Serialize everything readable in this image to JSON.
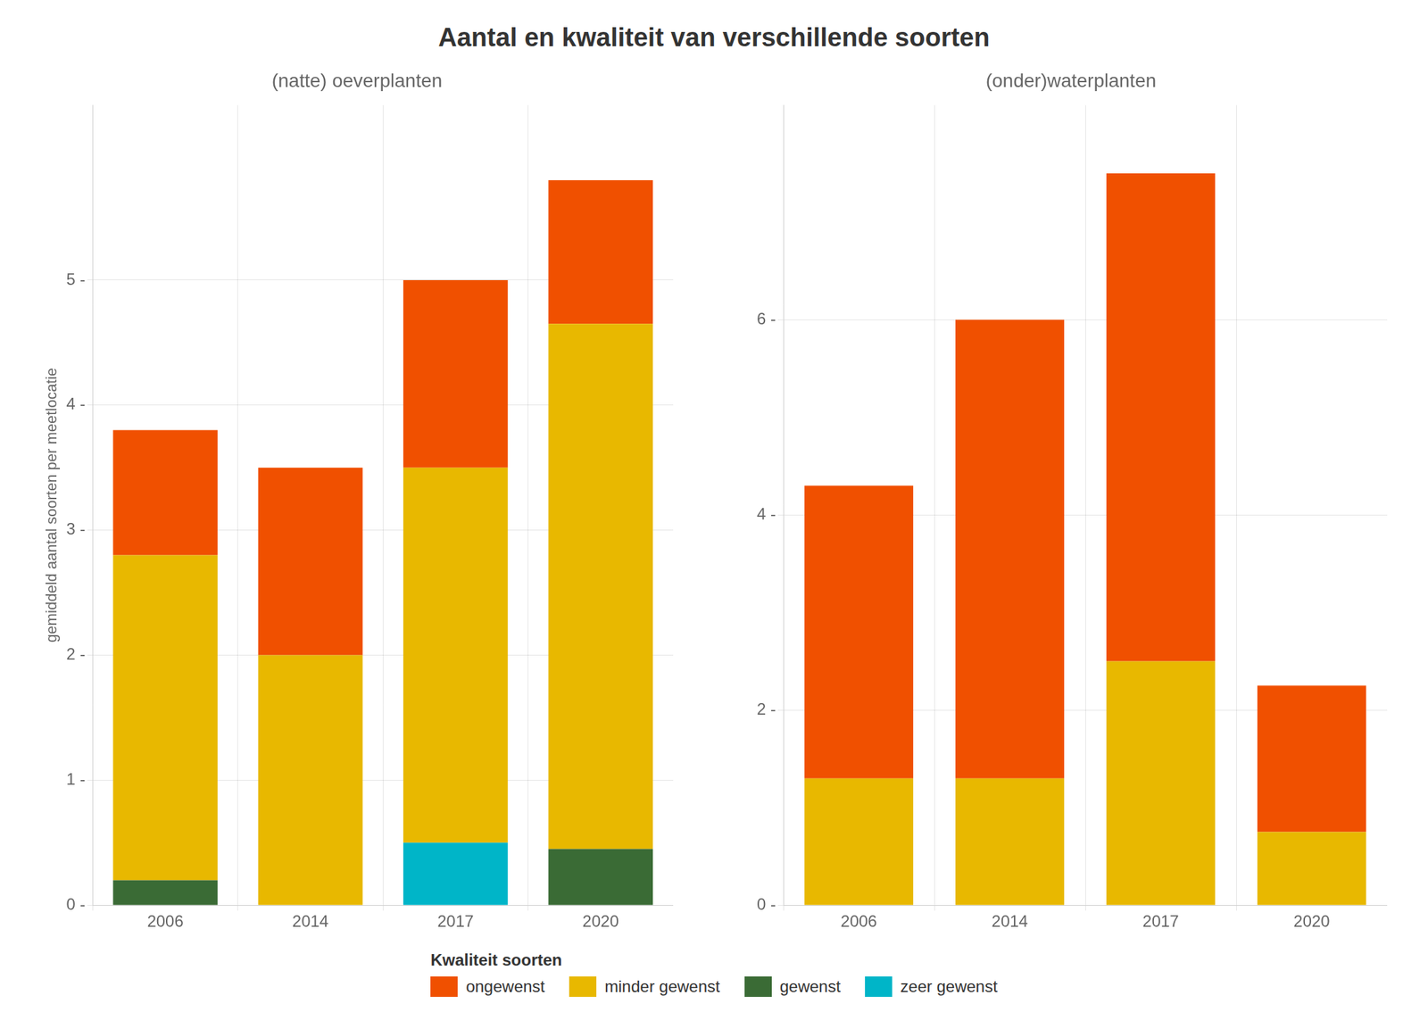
{
  "title": "Aantal en kwaliteit van verschillende soorten",
  "legend_title": "Kwaliteit soorten",
  "legend": "bottom",
  "chart_data": [
    {
      "type": "bar",
      "stacked": true,
      "grid": true,
      "title": "(natte) oeverplanten",
      "ylabel": "gemiddeld aantal soorten per meetlocatie",
      "categories": [
        "2006",
        "2014",
        "2017",
        "2020"
      ],
      "series": [
        {
          "name": "zeer gewenst",
          "color": "#00B5C8",
          "values": [
            0.0,
            0.0,
            0.5,
            0.0
          ]
        },
        {
          "name": "gewenst",
          "color": "#3A6B35",
          "values": [
            0.2,
            0.0,
            0.0,
            0.45
          ]
        },
        {
          "name": "minder gewenst",
          "color": "#E8B800",
          "values": [
            2.6,
            2.0,
            3.0,
            4.2
          ]
        },
        {
          "name": "ongewenst",
          "color": "#F05000",
          "values": [
            1.0,
            1.5,
            1.5,
            1.15
          ]
        }
      ],
      "ylim": [
        0,
        6.4
      ],
      "yticks": [
        {
          "value": 0,
          "label": "0 -"
        },
        {
          "value": 1,
          "label": "1 -"
        },
        {
          "value": 2,
          "label": "2 -"
        },
        {
          "value": 3,
          "label": "3 -"
        },
        {
          "value": 4,
          "label": "4 -"
        },
        {
          "value": 5,
          "label": "5 -"
        }
      ]
    },
    {
      "type": "bar",
      "stacked": true,
      "grid": true,
      "title": "(onder)waterplanten",
      "categories": [
        "2006",
        "2014",
        "2017",
        "2020"
      ],
      "series": [
        {
          "name": "zeer gewenst",
          "color": "#00B5C8",
          "values": [
            0.0,
            0.0,
            0.0,
            0.0
          ]
        },
        {
          "name": "gewenst",
          "color": "#3A6B35",
          "values": [
            0.0,
            0.0,
            0.0,
            0.0
          ]
        },
        {
          "name": "minder gewenst",
          "color": "#E8B800",
          "values": [
            1.3,
            1.3,
            2.5,
            0.75
          ]
        },
        {
          "name": "ongewenst",
          "color": "#F05000",
          "values": [
            3.0,
            4.7,
            5.0,
            1.5
          ]
        }
      ],
      "ylim": [
        0,
        8.2
      ],
      "yticks": [
        {
          "value": 0,
          "label": "0 -"
        },
        {
          "value": 2,
          "label": "2 -"
        },
        {
          "value": 4,
          "label": "4 -"
        },
        {
          "value": 6,
          "label": "6 -"
        }
      ]
    }
  ]
}
